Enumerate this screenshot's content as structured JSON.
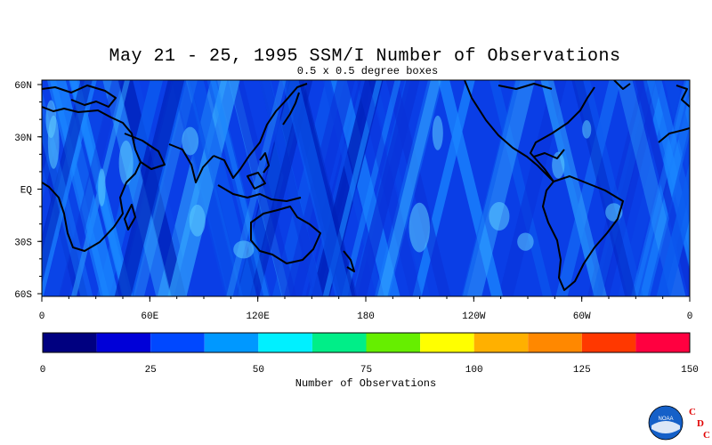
{
  "title": "May 21 - 25, 1995 SSM/I Number of Observations",
  "subtitle": "0.5 x 0.5 degree boxes",
  "lat_labels": [
    "60N",
    "30N",
    "EQ",
    "30S",
    "60S"
  ],
  "lon_labels": [
    "0",
    "60E",
    "120E",
    "180",
    "120W",
    "60W",
    "0"
  ],
  "colorbar": {
    "title": "Number of Observations",
    "min": 0,
    "max": 150,
    "tick_labels": [
      "0",
      "25",
      "50",
      "75",
      "100",
      "125",
      "150"
    ],
    "colors": [
      "#000080",
      "#0000d8",
      "#0048ff",
      "#0098ff",
      "#00f0ff",
      "#00ee88",
      "#66ee00",
      "#ffff00",
      "#ffb000",
      "#ff8800",
      "#ff3800",
      "#ff0040"
    ]
  },
  "logo": {
    "icon": "noaa-logo",
    "letters": [
      "C",
      "D",
      "C"
    ],
    "emblem_text": "NOAA"
  }
}
